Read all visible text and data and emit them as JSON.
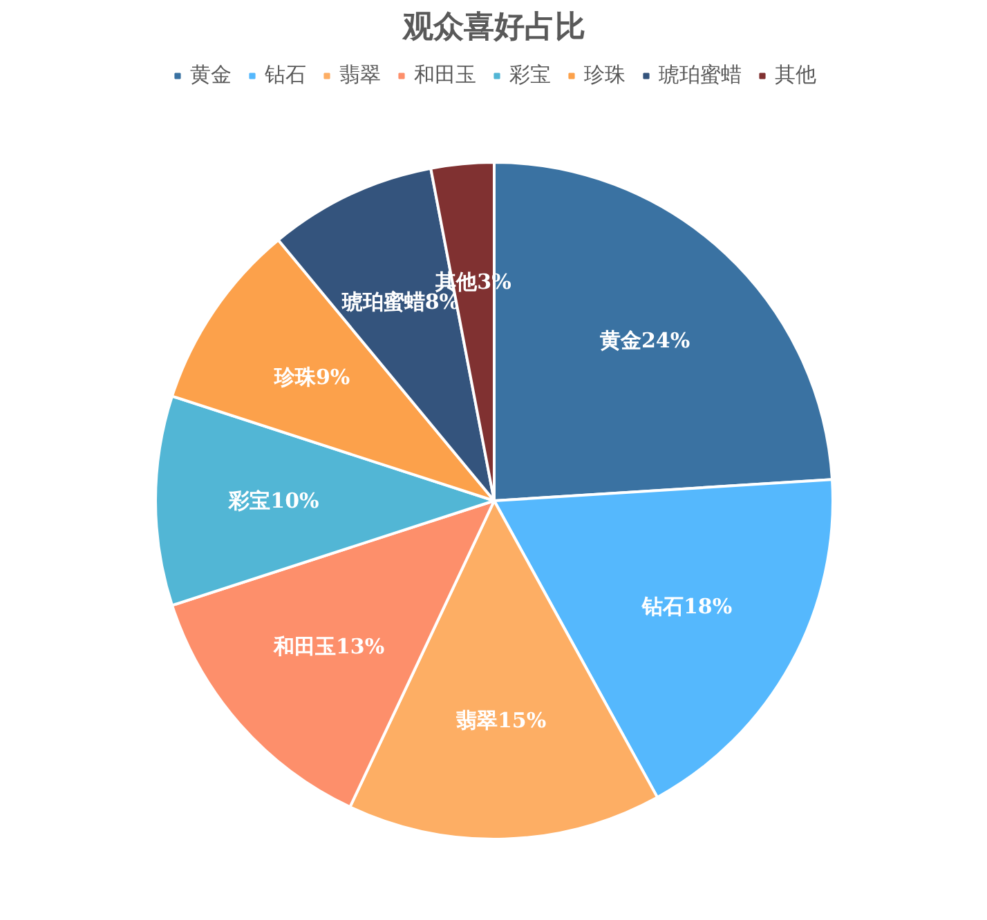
{
  "chart_data": {
    "type": "pie",
    "title": "观众喜好占比",
    "categories": [
      "黄金",
      "钻石",
      "翡翠",
      "和田玉",
      "彩宝",
      "珍珠",
      "琥珀蜜蜡",
      "其他"
    ],
    "values": [
      24,
      18,
      15,
      13,
      10,
      9,
      8,
      3
    ],
    "colors": [
      "#3a72a2",
      "#55b8fd",
      "#fdae64",
      "#fd8f6b",
      "#52b6d5",
      "#fca14b",
      "#34547d",
      "#803131"
    ],
    "value_labels": [
      "黄金24%",
      "钻石18%",
      "翡翠15%",
      "和田玉13%",
      "彩宝10%",
      "珍珠9%",
      "琥珀蜜蜡8%",
      "其他3%"
    ],
    "legend": "top"
  }
}
